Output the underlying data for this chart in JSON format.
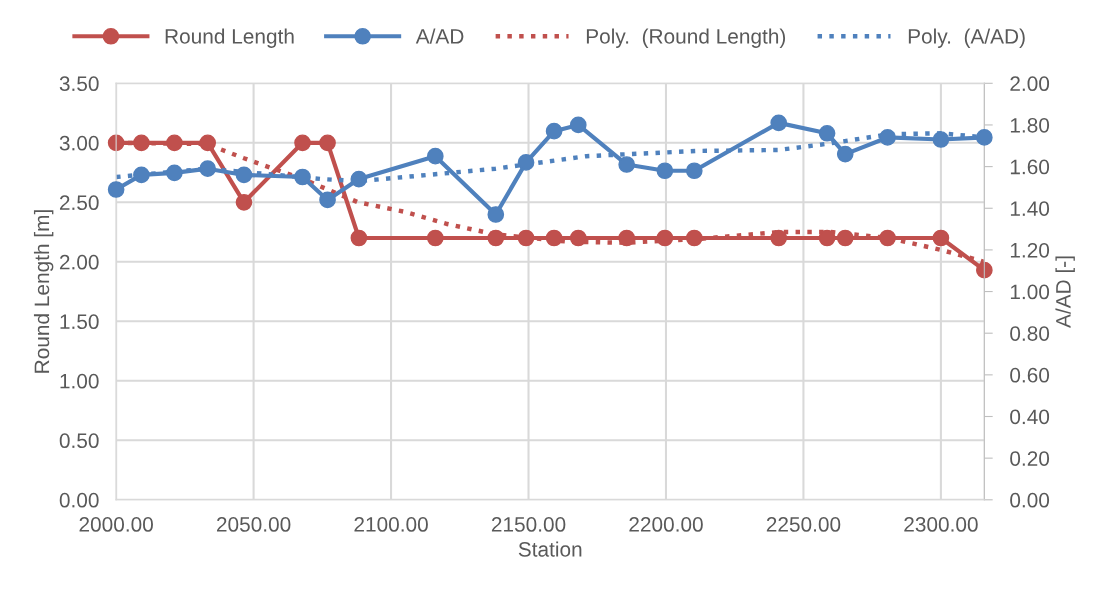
{
  "chart_data": {
    "type": "line",
    "xlabel": "Station",
    "ylabel": "Round Length [m]",
    "y2label": "A/AD [-]",
    "x": [
      2000,
      2009.2,
      2021.2,
      2033.3,
      2046.5,
      2067.8,
      2076.9,
      2088.3,
      2116.1,
      2138.1,
      2149.1,
      2159.3,
      2168.1,
      2185.7,
      2199.6,
      2210.3,
      2241,
      2258.6,
      2265.2,
      2280.6,
      2300,
      2315.8
    ],
    "series": [
      {
        "name": "Round Length",
        "color": "#c0504d",
        "marker": "circle",
        "line_style": "solid",
        "values": [
          3,
          3,
          3,
          3,
          2.5,
          3,
          3,
          2.2,
          2.2,
          2.2,
          2.2,
          2.2,
          2.2,
          2.2,
          2.2,
          2.2,
          2.2,
          2.2,
          2.2,
          2.2,
          2.2,
          1.93
        ]
      },
      {
        "name": "A/AD",
        "color": "#4f81bd",
        "marker": "circle",
        "line_style": "solid",
        "axis": "y2",
        "values": [
          1.49,
          1.56,
          1.57,
          1.59,
          1.56,
          1.55,
          1.44,
          1.54,
          1.65,
          1.37,
          1.62,
          1.77,
          1.8,
          1.61,
          1.58,
          1.58,
          1.81,
          1.76,
          1.66,
          1.74,
          1.73,
          1.74
        ]
      },
      {
        "name": "Poly.  (Round Length)",
        "color": "#c0504d",
        "marker": "none",
        "line_style": "dotted",
        "x": [
          2000,
          2033,
          2046.5,
          2068.5,
          2088,
          2105,
          2120,
          2138,
          2164,
          2185,
          2211,
          2241,
          2260,
          2281,
          2300,
          2315.8
        ],
        "values": [
          3.0,
          2.99,
          2.87,
          2.69,
          2.5,
          2.42,
          2.32,
          2.23,
          2.17,
          2.16,
          2.19,
          2.25,
          2.25,
          2.2,
          2.1,
          2.0
        ]
      },
      {
        "name": "Poly.  (A/AD)",
        "color": "#4f81bd",
        "marker": "none",
        "line_style": "dotted",
        "axis": "y2",
        "x": [
          2000,
          2033,
          2050,
          2075,
          2088,
          2105,
          2138,
          2171,
          2211,
          2241,
          2259,
          2281,
          2300,
          2315.8
        ],
        "values": [
          1.55,
          1.59,
          1.57,
          1.54,
          1.53,
          1.55,
          1.59,
          1.65,
          1.675,
          1.68,
          1.71,
          1.755,
          1.76,
          1.74
        ]
      }
    ],
    "xlim": [
      2000,
      2315.8
    ],
    "xticks": [
      {
        "value": 2000,
        "label": "2000.00"
      },
      {
        "value": 2050,
        "label": "2050.00"
      },
      {
        "value": 2100,
        "label": "2100.00"
      },
      {
        "value": 2150,
        "label": "2150.00"
      },
      {
        "value": 2200,
        "label": "2200.00"
      },
      {
        "value": 2250,
        "label": "2250.00"
      },
      {
        "value": 2300,
        "label": "2300.00"
      }
    ],
    "ylim": [
      0,
      3.5
    ],
    "yticks": [
      {
        "value": 0,
        "label": "0.00"
      },
      {
        "value": 0.5,
        "label": "0.50"
      },
      {
        "value": 1,
        "label": "1.00"
      },
      {
        "value": 1.5,
        "label": "1.50"
      },
      {
        "value": 2,
        "label": "2.00"
      },
      {
        "value": 2.5,
        "label": "2.50"
      },
      {
        "value": 3,
        "label": "3.00"
      },
      {
        "value": 3.5,
        "label": "3.50"
      }
    ],
    "y2lim": [
      0,
      2
    ],
    "y2ticks": [
      {
        "value": 0,
        "label": "0.00"
      },
      {
        "value": 0.2,
        "label": "0.20"
      },
      {
        "value": 0.4,
        "label": "0.40"
      },
      {
        "value": 0.6,
        "label": "0.60"
      },
      {
        "value": 0.8,
        "label": "0.80"
      },
      {
        "value": 1,
        "label": "1.00"
      },
      {
        "value": 1.2,
        "label": "1.20"
      },
      {
        "value": 1.4,
        "label": "1.40"
      },
      {
        "value": 1.6,
        "label": "1.60"
      },
      {
        "value": 1.8,
        "label": "1.80"
      },
      {
        "value": 2,
        "label": "2.00"
      }
    ],
    "grid": true,
    "legend": "top"
  }
}
